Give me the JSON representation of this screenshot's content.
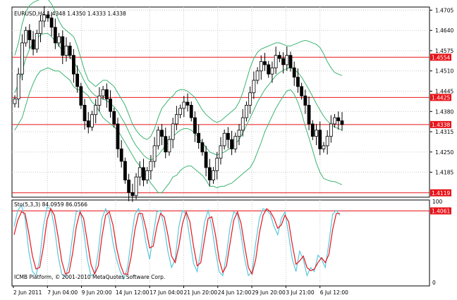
{
  "window": {
    "symbol_header": "EURUSD,H4  1.4348 1.4350 1.4333 1.4338",
    "copyright": "ICMB Platform, © 2001-2010 MetaQuotes Software Corp."
  },
  "colors": {
    "background": "#ffffff",
    "candle": "#000000",
    "bollinger": "#3cb371",
    "level_line": "#e8141a",
    "level_label_bg": "#e8141a",
    "stoch_main": "#5bc8dc",
    "stoch_signal": "#e8141a",
    "grid": "#c8c8c8",
    "axis_text": "#000000"
  },
  "chart_data": [
    {
      "type": "candlestick",
      "title": "EURUSD,H4  1.4348 1.4350 1.4333 1.4338",
      "y_ticks": [
        1.4705,
        1.464,
        1.4575,
        1.451,
        1.4445,
        1.438,
        1.4315,
        1.425,
        1.4185
      ],
      "ylim": [
        1.4105,
        1.4715
      ],
      "grid": true,
      "x_ticks": [
        "2 Jun 2011",
        "7 Jun 04:00",
        "9 Jun 20:00",
        "14 Jun 12:00",
        "17 Jun 04:00",
        "21 Jun 20:00",
        "24 Jun 12:00",
        "29 Jun 20:00",
        "3 Jul 21:00",
        "6 Jul 12:00"
      ],
      "horizontal_levels": [
        1.4554,
        1.4425,
        1.4338,
        1.4119,
        1.4061
      ],
      "level_labels": [
        "1.4554",
        "1.4425",
        "1.4338",
        "1.4119",
        "1.4061"
      ],
      "close_path": [
        1.442,
        1.45,
        1.46,
        1.464,
        1.461,
        1.458,
        1.463,
        1.467,
        1.469,
        1.468,
        1.465,
        1.46,
        1.462,
        1.456,
        1.459,
        1.456,
        1.45,
        1.446,
        1.44,
        1.435,
        1.433,
        1.437,
        1.44,
        1.443,
        1.445,
        1.442,
        1.438,
        1.434,
        1.426,
        1.422,
        1.416,
        1.412,
        1.411,
        1.417,
        1.42,
        1.416,
        1.419,
        1.422,
        1.427,
        1.432,
        1.43,
        1.425,
        1.429,
        1.434,
        1.437,
        1.439,
        1.441,
        1.44,
        1.436,
        1.431,
        1.428,
        1.425,
        1.42,
        1.416,
        1.419,
        1.423,
        1.427,
        1.431,
        1.429,
        1.426,
        1.43,
        1.432,
        1.436,
        1.44,
        1.444,
        1.448,
        1.451,
        1.454,
        1.453,
        1.45,
        1.452,
        1.456,
        1.455,
        1.453,
        1.456,
        1.452,
        1.449,
        1.446,
        1.443,
        1.44,
        1.434,
        1.43,
        1.432,
        1.426,
        1.427,
        1.43,
        1.434,
        1.436,
        1.435,
        1.4338
      ],
      "bollinger_upper": [
        1.456,
        1.46,
        1.466,
        1.47,
        1.472,
        1.473,
        1.4735,
        1.474,
        1.4745,
        1.474,
        1.4725,
        1.47,
        1.467,
        1.465,
        1.464,
        1.463,
        1.462,
        1.459,
        1.455,
        1.451,
        1.448,
        1.447,
        1.446,
        1.447,
        1.448,
        1.448,
        1.447,
        1.446,
        1.444,
        1.442,
        1.44,
        1.437,
        1.434,
        1.432,
        1.4305,
        1.4295,
        1.429,
        1.43,
        1.4325,
        1.436,
        1.439,
        1.4405,
        1.442,
        1.443,
        1.4445,
        1.445,
        1.445,
        1.4445,
        1.4435,
        1.4425,
        1.4405,
        1.4385,
        1.437,
        1.436,
        1.435,
        1.4345,
        1.435,
        1.436,
        1.437,
        1.438,
        1.439,
        1.441,
        1.444,
        1.448,
        1.452,
        1.455,
        1.457,
        1.458,
        1.4585,
        1.459,
        1.4595,
        1.46,
        1.46,
        1.4595,
        1.459,
        1.459,
        1.4595,
        1.46,
        1.4605,
        1.4608,
        1.4605,
        1.46,
        1.4595,
        1.4585,
        1.4565,
        1.454,
        1.452,
        1.4505,
        1.45,
        1.4495
      ],
      "bollinger_middle": [
        1.444,
        1.447,
        1.451,
        1.455,
        1.458,
        1.46,
        1.4615,
        1.4625,
        1.463,
        1.463,
        1.462,
        1.4605,
        1.459,
        1.4575,
        1.4565,
        1.4555,
        1.454,
        1.452,
        1.45,
        1.4475,
        1.4455,
        1.444,
        1.443,
        1.4425,
        1.442,
        1.4415,
        1.4405,
        1.4395,
        1.438,
        1.436,
        1.434,
        1.4315,
        1.429,
        1.427,
        1.4255,
        1.424,
        1.423,
        1.4225,
        1.423,
        1.424,
        1.4255,
        1.427,
        1.4285,
        1.43,
        1.431,
        1.432,
        1.4325,
        1.4325,
        1.432,
        1.431,
        1.4295,
        1.428,
        1.4265,
        1.425,
        1.4245,
        1.424,
        1.4245,
        1.425,
        1.4258,
        1.4265,
        1.4275,
        1.429,
        1.431,
        1.4335,
        1.436,
        1.4385,
        1.441,
        1.443,
        1.445,
        1.4465,
        1.448,
        1.4495,
        1.4505,
        1.4512,
        1.4518,
        1.452,
        1.4515,
        1.4505,
        1.449,
        1.447,
        1.445,
        1.4428,
        1.4405,
        1.4385,
        1.4365,
        1.435,
        1.4338,
        1.433,
        1.4325,
        1.432
      ],
      "bollinger_lower": [
        1.432,
        1.434,
        1.436,
        1.44,
        1.444,
        1.447,
        1.4495,
        1.451,
        1.4515,
        1.452,
        1.4515,
        1.451,
        1.451,
        1.45,
        1.449,
        1.448,
        1.446,
        1.445,
        1.445,
        1.444,
        1.443,
        1.441,
        1.44,
        1.438,
        1.436,
        1.435,
        1.434,
        1.433,
        1.432,
        1.43,
        1.428,
        1.426,
        1.424,
        1.422,
        1.4205,
        1.4185,
        1.417,
        1.415,
        1.4135,
        1.412,
        1.412,
        1.4135,
        1.415,
        1.417,
        1.4175,
        1.419,
        1.42,
        1.4205,
        1.4205,
        1.4195,
        1.4185,
        1.4175,
        1.416,
        1.414,
        1.414,
        1.4135,
        1.414,
        1.414,
        1.4146,
        1.415,
        1.416,
        1.417,
        1.418,
        1.419,
        1.42,
        1.422,
        1.425,
        1.428,
        1.4315,
        1.434,
        1.4365,
        1.439,
        1.441,
        1.4429,
        1.4446,
        1.445,
        1.4435,
        1.441,
        1.4375,
        1.4332,
        1.4295,
        1.4256,
        1.4215,
        1.4185,
        1.4165,
        1.416,
        1.4156,
        1.4155,
        1.415,
        1.4145
      ]
    },
    {
      "type": "line",
      "title": "Sto(5,3,3) 84.0959 86.0566",
      "y_ticks": [
        100,
        0
      ],
      "ylim": [
        0,
        100
      ],
      "series": [
        {
          "values": [
            70,
            90,
            96,
            80,
            40,
            15,
            10,
            30,
            70,
            94,
            92,
            70,
            35,
            12,
            8,
            25,
            60,
            88,
            90,
            65,
            30,
            10,
            12,
            40,
            80,
            92,
            80,
            50,
            30,
            15,
            6,
            20,
            55,
            85,
            92,
            78,
            50,
            30,
            60,
            88,
            90,
            70,
            40,
            20,
            30,
            70,
            90,
            85,
            55,
            25,
            15,
            40,
            75,
            90,
            70,
            40,
            15,
            10,
            35,
            70,
            88,
            85,
            60,
            30,
            10,
            15,
            50,
            80,
            92,
            90,
            85,
            70,
            60,
            80,
            88,
            60,
            30,
            15,
            40,
            30,
            10,
            20,
            15,
            35,
            30,
            20,
            50,
            85,
            90,
            84
          ]
        },
        {
          "values": [
            60,
            78,
            88,
            86,
            62,
            34,
            18,
            20,
            45,
            78,
            92,
            84,
            58,
            28,
            12,
            14,
            38,
            70,
            88,
            80,
            52,
            24,
            12,
            22,
            58,
            84,
            88,
            72,
            44,
            24,
            12,
            12,
            34,
            66,
            86,
            86,
            68,
            44,
            46,
            70,
            86,
            82,
            60,
            34,
            26,
            46,
            74,
            88,
            76,
            46,
            22,
            26,
            54,
            80,
            82,
            60,
            30,
            14,
            22,
            50,
            78,
            88,
            74,
            46,
            20,
            12,
            30,
            62,
            84,
            92,
            88,
            80,
            68,
            72,
            84,
            76,
            48,
            24,
            28,
            34,
            20,
            16,
            18,
            26,
            32,
            26,
            36,
            66,
            86,
            86
          ]
        }
      ]
    }
  ]
}
